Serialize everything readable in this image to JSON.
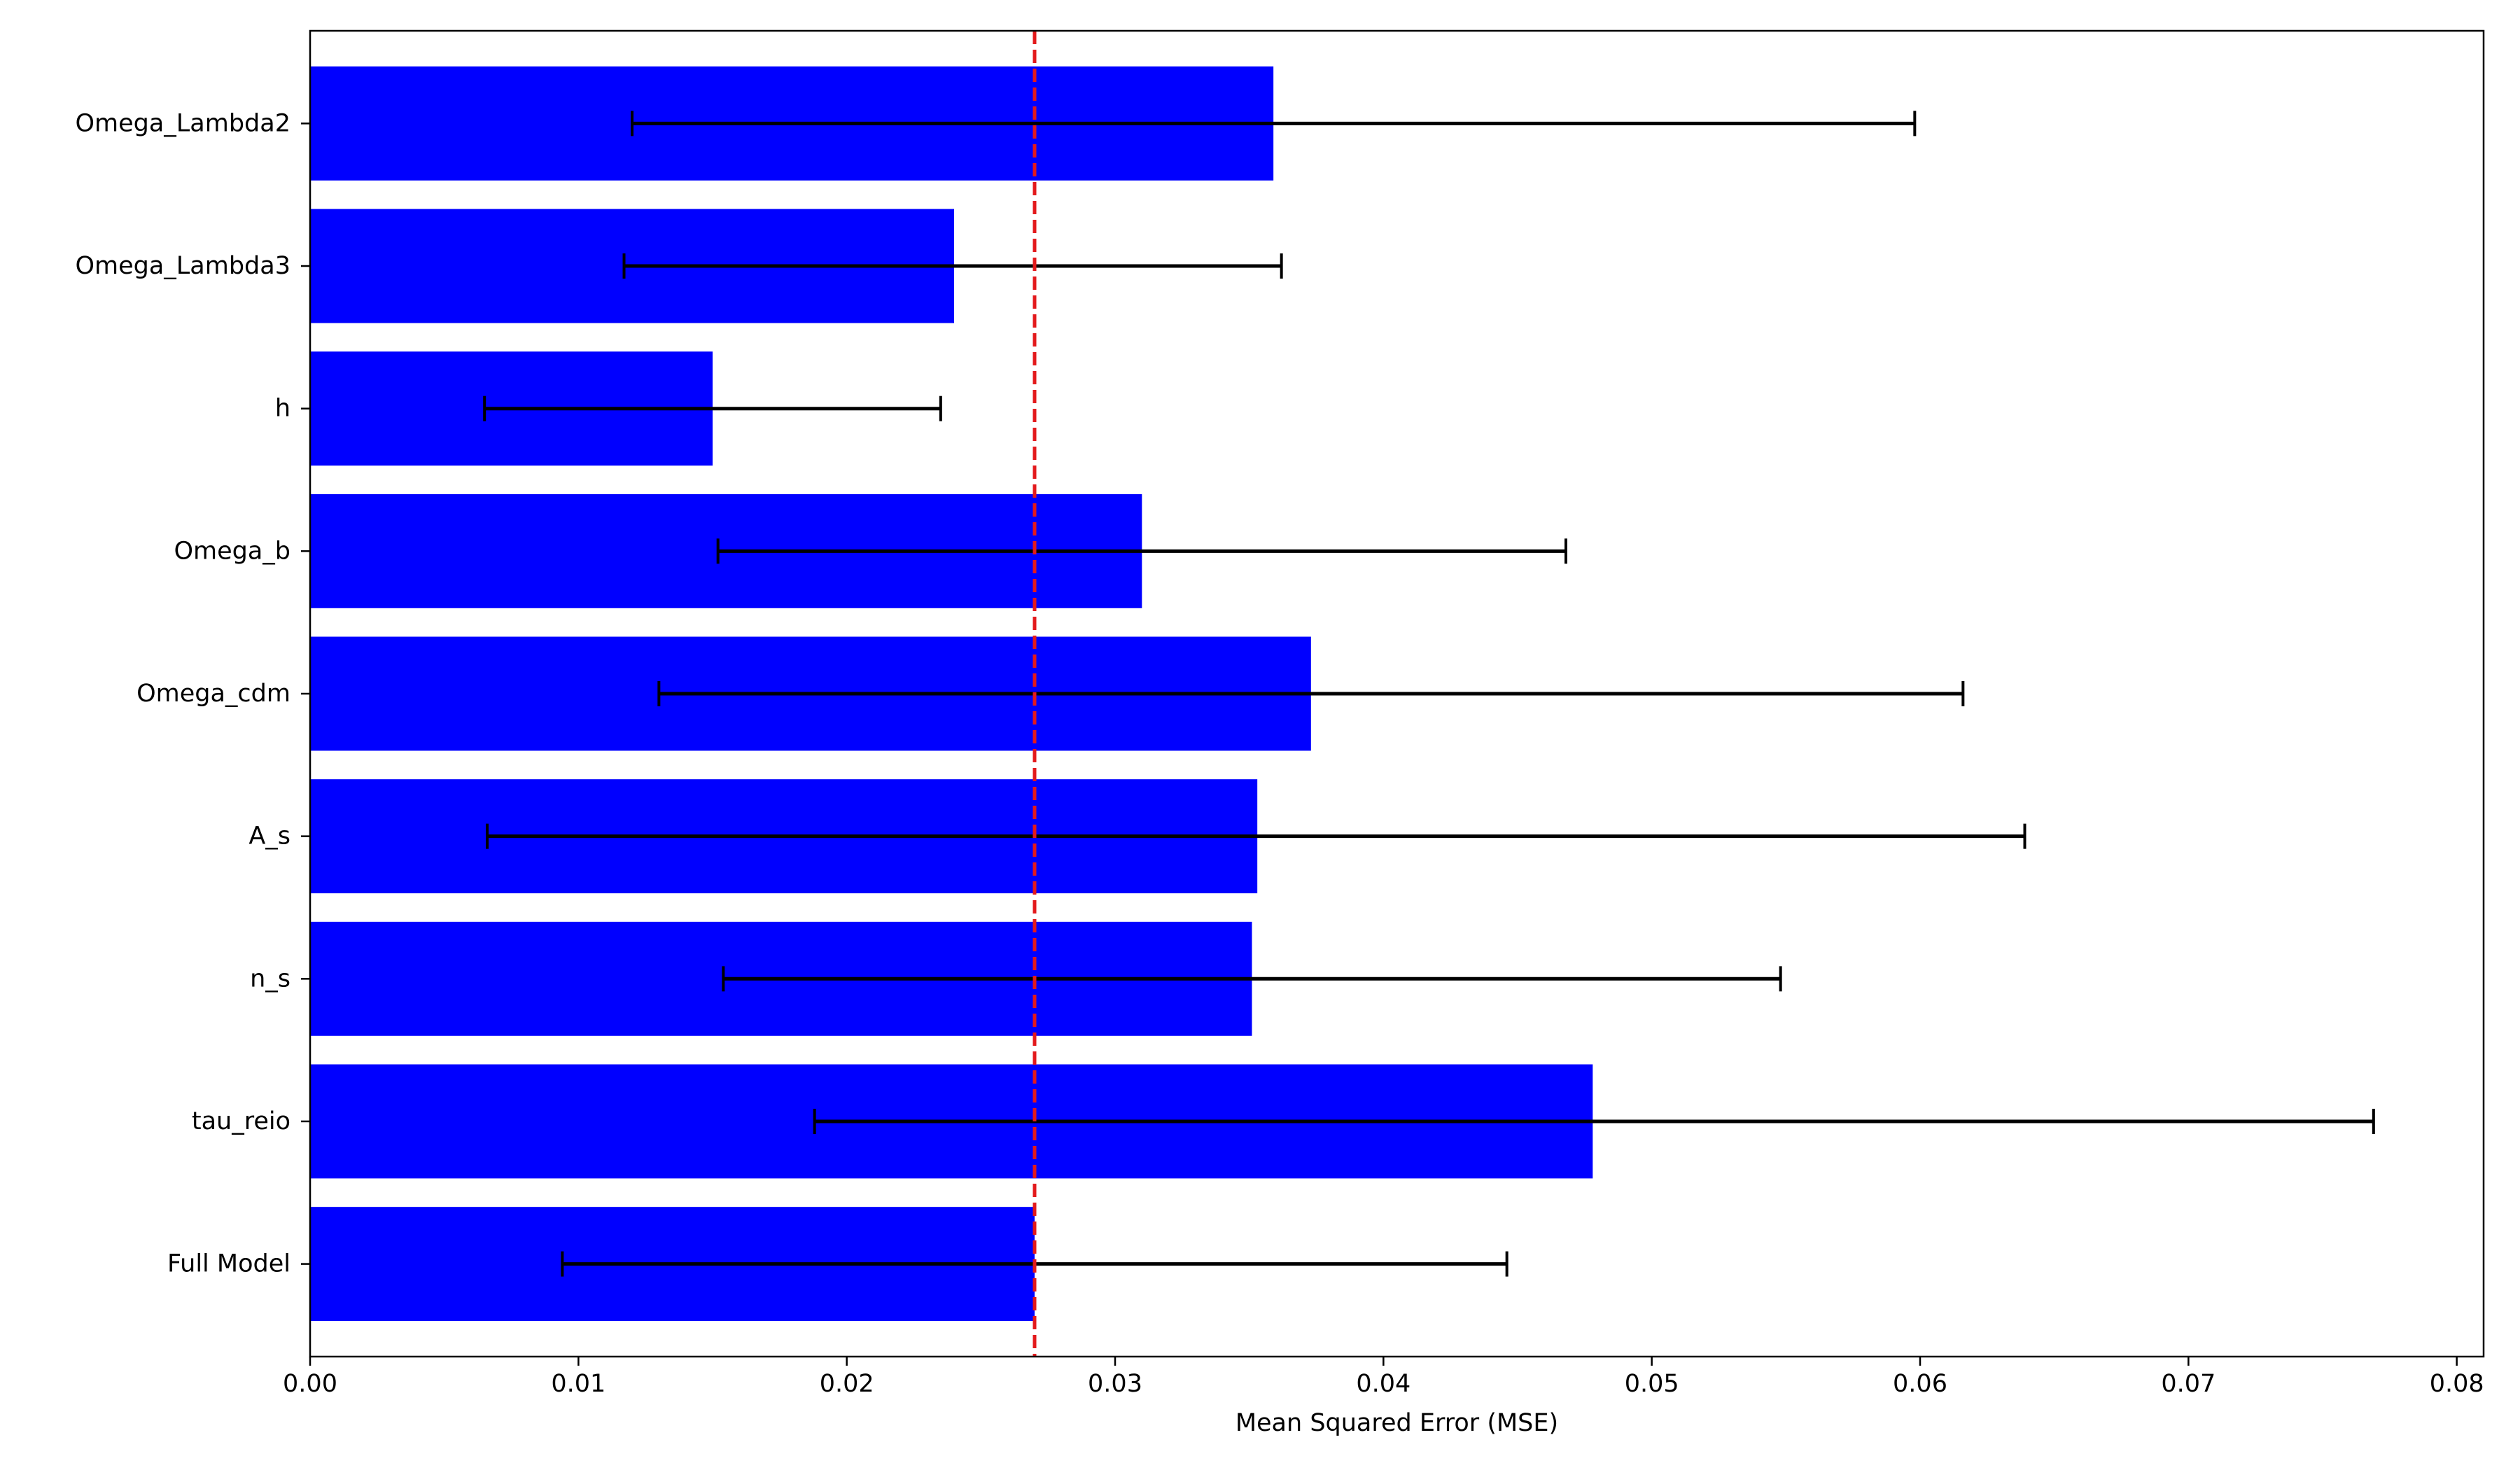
{
  "chart_data": {
    "type": "bar",
    "orientation": "horizontal",
    "title": "",
    "xlabel": "Mean Squared Error (MSE)",
    "ylabel": "",
    "categories": [
      "Omega_Lambda2",
      "Omega_Lambda3",
      "h",
      "Omega_b",
      "Omega_cdm",
      "A_s",
      "n_s",
      "tau_reio",
      "Full Model"
    ],
    "values": [
      0.0359,
      0.024,
      0.015,
      0.031,
      0.0373,
      0.0353,
      0.0351,
      0.0478,
      0.027
    ],
    "error_low": [
      0.012,
      0.0117,
      0.0065,
      0.0152,
      0.013,
      0.0066,
      0.0154,
      0.0188,
      0.0094
    ],
    "error_high": [
      0.0598,
      0.0362,
      0.0235,
      0.0468,
      0.0616,
      0.0639,
      0.0548,
      0.0769,
      0.0446
    ],
    "reference_line": {
      "value": 0.027,
      "style": "dashed",
      "color": "#e31a1c"
    },
    "xlim": [
      0.0,
      0.081
    ],
    "xticks": [
      "0.00",
      "0.01",
      "0.02",
      "0.03",
      "0.04",
      "0.05",
      "0.06",
      "0.07",
      "0.08"
    ],
    "xtick_values": [
      0.0,
      0.01,
      0.02,
      0.03,
      0.04,
      0.05,
      0.06,
      0.07,
      0.08
    ],
    "bar_color": "#0000ff",
    "error_color": "#000000",
    "grid": false,
    "legend": "none"
  }
}
